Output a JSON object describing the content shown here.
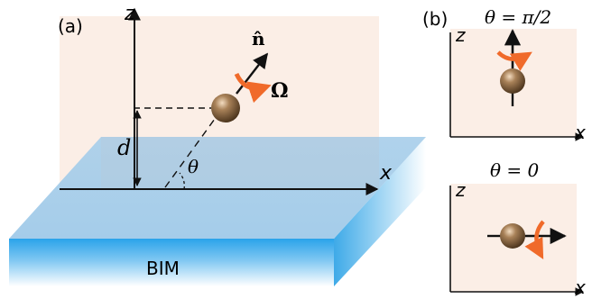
{
  "panel_a": {
    "label": "(a)",
    "axis_z": "z",
    "axis_x": "x",
    "normal_vector": "n̂",
    "omega": "Ω",
    "height": "d",
    "angle": "θ",
    "medium": "BIM"
  },
  "panel_b": {
    "label": "(b)",
    "top": {
      "title": "θ = π/2",
      "axis_z": "z",
      "axis_x": "x"
    },
    "bottom": {
      "title": "θ = 0",
      "axis_z": "z",
      "axis_x": "x"
    }
  },
  "colors": {
    "plane_pink": "#fbeee6",
    "slab_top": "#a8cde9",
    "slab_front": "#38a9e8",
    "rotation_arrow": "#f06a2a",
    "particle": "#8b6a44"
  }
}
